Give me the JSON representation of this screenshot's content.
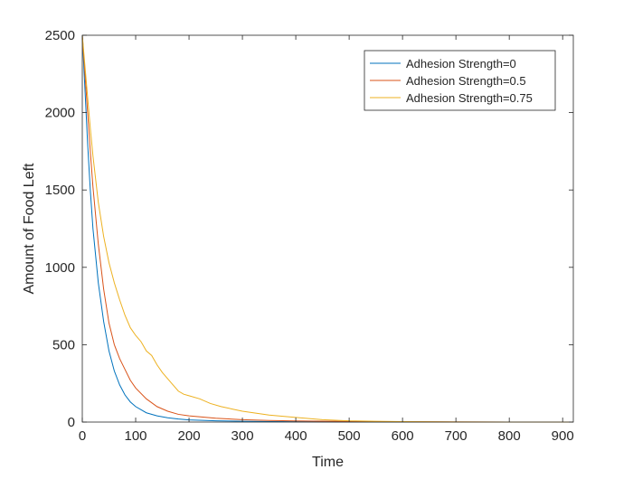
{
  "chart_data": {
    "type": "line",
    "title": "",
    "xlabel": "Time",
    "ylabel": "Amount of Food Left",
    "xlim": [
      0,
      920
    ],
    "ylim": [
      0,
      2500
    ],
    "xticks": [
      0,
      100,
      200,
      300,
      400,
      500,
      600,
      700,
      800,
      900
    ],
    "yticks": [
      0,
      500,
      1000,
      1500,
      2000,
      2500
    ],
    "grid": false,
    "legend_position": "top-right",
    "series": [
      {
        "name": "Adhesion Strength=0",
        "color": "#0072BD",
        "x": [
          0,
          5,
          10,
          15,
          20,
          30,
          40,
          50,
          60,
          70,
          80,
          90,
          100,
          120,
          140,
          160,
          180,
          200,
          250,
          300,
          350,
          400,
          500,
          600,
          700,
          800,
          920
        ],
        "y": [
          2500,
          2150,
          1800,
          1500,
          1250,
          900,
          650,
          460,
          330,
          240,
          175,
          130,
          100,
          60,
          40,
          28,
          20,
          14,
          8,
          5,
          3,
          2,
          1,
          0,
          0,
          0,
          0
        ]
      },
      {
        "name": "Adhesion Strength=0.5",
        "color": "#D95319",
        "x": [
          0,
          5,
          10,
          15,
          20,
          30,
          40,
          50,
          60,
          70,
          80,
          90,
          100,
          120,
          140,
          160,
          180,
          200,
          250,
          300,
          350,
          400,
          500,
          600,
          700,
          800,
          920
        ],
        "y": [
          2500,
          2250,
          2000,
          1750,
          1520,
          1150,
          860,
          640,
          500,
          410,
          340,
          270,
          220,
          150,
          100,
          70,
          50,
          40,
          25,
          15,
          10,
          7,
          4,
          2,
          1,
          0,
          0
        ]
      },
      {
        "name": "Adhesion Strength=0.75",
        "color": "#EDB120",
        "x": [
          0,
          5,
          10,
          15,
          20,
          30,
          40,
          50,
          60,
          70,
          80,
          90,
          100,
          110,
          120,
          130,
          140,
          150,
          160,
          170,
          180,
          190,
          200,
          220,
          240,
          260,
          280,
          300,
          350,
          400,
          450,
          500,
          550,
          600,
          700,
          800,
          920
        ],
        "y": [
          2500,
          2300,
          2100,
          1900,
          1720,
          1420,
          1200,
          1030,
          900,
          790,
          690,
          610,
          560,
          520,
          460,
          430,
          370,
          320,
          280,
          240,
          200,
          180,
          170,
          150,
          120,
          100,
          85,
          70,
          45,
          30,
          15,
          8,
          5,
          3,
          1,
          0,
          0
        ]
      }
    ]
  }
}
